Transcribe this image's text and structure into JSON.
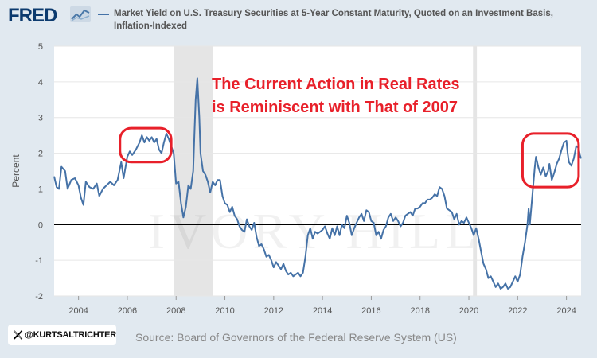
{
  "header": {
    "logo": "FRED",
    "logo_icon": "fred-chart-mark-icon",
    "legend_label": "Market Yield on U.S. Treasury Securities at 5-Year Constant Maturity, Quoted on an Investment Basis, Inflation-Indexed"
  },
  "annotation": {
    "line1": "The Current Action in Real Rates",
    "line2": "is Reminiscent with That of 2007",
    "color": "#e8202a"
  },
  "watermark": "IVORY HILL",
  "footer": {
    "source": "Source: Board of Governors of the Federal Reserve System (US)",
    "twitter_handle": "@KURTSALTRICHTER",
    "twitter_icon": "x-logo-icon"
  },
  "colors": {
    "series": "#4572a7",
    "recession": "#e5e5e5",
    "background": "#e1e9f0",
    "plot": "#ffffff"
  },
  "chart_data": {
    "type": "line",
    "title": "",
    "xlabel": "",
    "ylabel": "Percent",
    "xlim": [
      2003.0,
      2024.6
    ],
    "ylim": [
      -2,
      5
    ],
    "x_ticks": [
      2004,
      2006,
      2008,
      2010,
      2012,
      2014,
      2016,
      2018,
      2020,
      2022,
      2024
    ],
    "y_ticks": [
      -2,
      -1,
      0,
      1,
      2,
      3,
      4,
      5
    ],
    "grid": "horizontal",
    "recessions": [
      [
        2007.92,
        2009.5
      ],
      [
        2020.17,
        2020.33
      ]
    ],
    "highlight_ellipses": [
      {
        "x_range": [
          2005.7,
          2007.8
        ],
        "y_range": [
          1.75,
          2.7
        ]
      },
      {
        "x_range": [
          2022.2,
          2024.5
        ],
        "y_range": [
          1.05,
          2.55
        ]
      }
    ],
    "series": [
      {
        "points": [
          [
            2003.0,
            1.35
          ],
          [
            2003.1,
            1.05
          ],
          [
            2003.2,
            1.0
          ],
          [
            2003.3,
            1.62
          ],
          [
            2003.45,
            1.5
          ],
          [
            2003.55,
            1.0
          ],
          [
            2003.7,
            1.25
          ],
          [
            2003.85,
            1.3
          ],
          [
            2004.0,
            1.1
          ],
          [
            2004.1,
            0.75
          ],
          [
            2004.2,
            0.55
          ],
          [
            2004.3,
            1.2
          ],
          [
            2004.45,
            1.05
          ],
          [
            2004.6,
            1.0
          ],
          [
            2004.75,
            1.15
          ],
          [
            2004.85,
            0.8
          ],
          [
            2005.0,
            1.0
          ],
          [
            2005.15,
            1.1
          ],
          [
            2005.3,
            1.2
          ],
          [
            2005.45,
            1.1
          ],
          [
            2005.6,
            1.25
          ],
          [
            2005.75,
            1.75
          ],
          [
            2005.85,
            1.3
          ],
          [
            2006.0,
            1.9
          ],
          [
            2006.1,
            2.05
          ],
          [
            2006.2,
            1.95
          ],
          [
            2006.35,
            2.1
          ],
          [
            2006.5,
            2.3
          ],
          [
            2006.6,
            2.5
          ],
          [
            2006.7,
            2.3
          ],
          [
            2006.8,
            2.45
          ],
          [
            2006.9,
            2.35
          ],
          [
            2007.0,
            2.45
          ],
          [
            2007.1,
            2.3
          ],
          [
            2007.2,
            2.4
          ],
          [
            2007.3,
            2.1
          ],
          [
            2007.4,
            2.0
          ],
          [
            2007.5,
            2.3
          ],
          [
            2007.6,
            2.55
          ],
          [
            2007.7,
            2.4
          ],
          [
            2007.8,
            2.2
          ],
          [
            2007.9,
            2.0
          ],
          [
            2008.0,
            1.15
          ],
          [
            2008.1,
            1.2
          ],
          [
            2008.2,
            0.6
          ],
          [
            2008.3,
            0.2
          ],
          [
            2008.4,
            0.5
          ],
          [
            2008.5,
            1.1
          ],
          [
            2008.6,
            1.0
          ],
          [
            2008.7,
            1.5
          ],
          [
            2008.75,
            2.5
          ],
          [
            2008.8,
            3.5
          ],
          [
            2008.87,
            4.1
          ],
          [
            2008.95,
            3.0
          ],
          [
            2009.0,
            2.0
          ],
          [
            2009.1,
            1.5
          ],
          [
            2009.2,
            1.4
          ],
          [
            2009.3,
            1.2
          ],
          [
            2009.4,
            0.9
          ],
          [
            2009.5,
            1.2
          ],
          [
            2009.6,
            1.1
          ],
          [
            2009.7,
            1.25
          ],
          [
            2009.8,
            1.25
          ],
          [
            2009.9,
            0.8
          ],
          [
            2010.0,
            0.6
          ],
          [
            2010.1,
            0.55
          ],
          [
            2010.2,
            0.35
          ],
          [
            2010.3,
            0.5
          ],
          [
            2010.4,
            0.25
          ],
          [
            2010.5,
            0.15
          ],
          [
            2010.6,
            -0.05
          ],
          [
            2010.7,
            -0.15
          ],
          [
            2010.8,
            -0.2
          ],
          [
            2010.9,
            0.15
          ],
          [
            2011.0,
            -0.05
          ],
          [
            2011.1,
            -0.15
          ],
          [
            2011.2,
            0.05
          ],
          [
            2011.3,
            -0.35
          ],
          [
            2011.4,
            -0.6
          ],
          [
            2011.5,
            -0.55
          ],
          [
            2011.6,
            -0.7
          ],
          [
            2011.7,
            -0.9
          ],
          [
            2011.8,
            -0.85
          ],
          [
            2011.9,
            -1.0
          ],
          [
            2012.0,
            -1.2
          ],
          [
            2012.1,
            -1.05
          ],
          [
            2012.2,
            -1.15
          ],
          [
            2012.3,
            -1.25
          ],
          [
            2012.4,
            -1.1
          ],
          [
            2012.5,
            -1.3
          ],
          [
            2012.6,
            -1.4
          ],
          [
            2012.7,
            -1.35
          ],
          [
            2012.8,
            -1.45
          ],
          [
            2012.9,
            -1.4
          ],
          [
            2013.0,
            -1.35
          ],
          [
            2013.1,
            -1.45
          ],
          [
            2013.2,
            -1.35
          ],
          [
            2013.3,
            -0.9
          ],
          [
            2013.4,
            -0.3
          ],
          [
            2013.5,
            -0.1
          ],
          [
            2013.6,
            -0.4
          ],
          [
            2013.7,
            -0.2
          ],
          [
            2013.8,
            -0.25
          ],
          [
            2013.9,
            -0.2
          ],
          [
            2014.0,
            -0.15
          ],
          [
            2014.1,
            -0.05
          ],
          [
            2014.2,
            -0.25
          ],
          [
            2014.3,
            -0.4
          ],
          [
            2014.4,
            -0.1
          ],
          [
            2014.5,
            -0.3
          ],
          [
            2014.6,
            -0.05
          ],
          [
            2014.7,
            -0.3
          ],
          [
            2014.8,
            0.0
          ],
          [
            2014.9,
            -0.1
          ],
          [
            2015.0,
            0.25
          ],
          [
            2015.1,
            0.05
          ],
          [
            2015.2,
            -0.3
          ],
          [
            2015.3,
            -0.1
          ],
          [
            2015.4,
            0.05
          ],
          [
            2015.5,
            0.2
          ],
          [
            2015.6,
            0.3
          ],
          [
            2015.7,
            0.1
          ],
          [
            2015.8,
            0.4
          ],
          [
            2015.9,
            0.35
          ],
          [
            2016.0,
            0.1
          ],
          [
            2016.1,
            0.05
          ],
          [
            2016.2,
            -0.3
          ],
          [
            2016.3,
            -0.2
          ],
          [
            2016.4,
            -0.4
          ],
          [
            2016.5,
            -0.15
          ],
          [
            2016.6,
            -0.05
          ],
          [
            2016.7,
            0.2
          ],
          [
            2016.8,
            0.3
          ],
          [
            2016.9,
            0.1
          ],
          [
            2017.0,
            0.2
          ],
          [
            2017.1,
            0.1
          ],
          [
            2017.2,
            -0.05
          ],
          [
            2017.3,
            0.05
          ],
          [
            2017.4,
            0.25
          ],
          [
            2017.5,
            0.3
          ],
          [
            2017.6,
            0.35
          ],
          [
            2017.7,
            0.25
          ],
          [
            2017.8,
            0.45
          ],
          [
            2017.9,
            0.45
          ],
          [
            2018.0,
            0.5
          ],
          [
            2018.1,
            0.6
          ],
          [
            2018.2,
            0.6
          ],
          [
            2018.3,
            0.7
          ],
          [
            2018.4,
            0.7
          ],
          [
            2018.5,
            0.75
          ],
          [
            2018.6,
            0.85
          ],
          [
            2018.7,
            0.8
          ],
          [
            2018.8,
            1.05
          ],
          [
            2018.9,
            1.0
          ],
          [
            2019.0,
            0.8
          ],
          [
            2019.1,
            0.45
          ],
          [
            2019.2,
            0.4
          ],
          [
            2019.3,
            0.35
          ],
          [
            2019.4,
            0.15
          ],
          [
            2019.5,
            0.3
          ],
          [
            2019.6,
            0.0
          ],
          [
            2019.7,
            0.1
          ],
          [
            2019.8,
            0.05
          ],
          [
            2019.9,
            0.2
          ],
          [
            2020.0,
            0.05
          ],
          [
            2020.1,
            -0.1
          ],
          [
            2020.2,
            -0.3
          ],
          [
            2020.3,
            -0.1
          ],
          [
            2020.4,
            -0.4
          ],
          [
            2020.5,
            -0.75
          ],
          [
            2020.6,
            -1.1
          ],
          [
            2020.7,
            -1.25
          ],
          [
            2020.8,
            -1.5
          ],
          [
            2020.9,
            -1.45
          ],
          [
            2021.0,
            -1.6
          ],
          [
            2021.1,
            -1.75
          ],
          [
            2021.2,
            -1.65
          ],
          [
            2021.3,
            -1.8
          ],
          [
            2021.4,
            -1.75
          ],
          [
            2021.5,
            -1.65
          ],
          [
            2021.6,
            -1.8
          ],
          [
            2021.7,
            -1.75
          ],
          [
            2021.8,
            -1.6
          ],
          [
            2021.9,
            -1.45
          ],
          [
            2022.0,
            -1.6
          ],
          [
            2022.1,
            -1.4
          ],
          [
            2022.2,
            -0.9
          ],
          [
            2022.3,
            -0.5
          ],
          [
            2022.4,
            0.0
          ],
          [
            2022.45,
            0.45
          ],
          [
            2022.5,
            0.0
          ],
          [
            2022.6,
            0.8
          ],
          [
            2022.7,
            1.6
          ],
          [
            2022.75,
            1.9
          ],
          [
            2022.85,
            1.6
          ],
          [
            2022.95,
            1.4
          ],
          [
            2023.05,
            1.6
          ],
          [
            2023.15,
            1.35
          ],
          [
            2023.25,
            1.5
          ],
          [
            2023.3,
            1.7
          ],
          [
            2023.4,
            1.25
          ],
          [
            2023.5,
            1.45
          ],
          [
            2023.6,
            1.7
          ],
          [
            2023.7,
            1.85
          ],
          [
            2023.8,
            2.1
          ],
          [
            2023.9,
            2.3
          ],
          [
            2024.0,
            2.35
          ],
          [
            2024.05,
            2.0
          ],
          [
            2024.1,
            1.75
          ],
          [
            2024.2,
            1.65
          ],
          [
            2024.3,
            1.85
          ],
          [
            2024.4,
            2.2
          ],
          [
            2024.5,
            2.15
          ],
          [
            2024.55,
            1.95
          ],
          [
            2024.6,
            1.85
          ]
        ]
      }
    ]
  }
}
